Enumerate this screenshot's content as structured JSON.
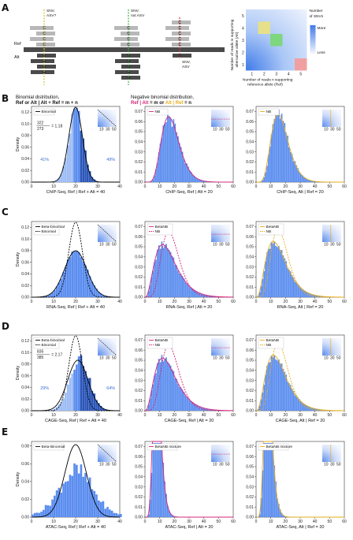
{
  "panel_letters": {
    "A": "A",
    "B": "B",
    "C": "C",
    "D": "D",
    "E": "E"
  },
  "schematic": {
    "ref_label": "Ref",
    "alt_label": "Alt",
    "snv_asv_q": [
      "SNV,",
      "ASV?"
    ],
    "snv_not_asv": [
      "SNV,",
      "not ASV"
    ],
    "snv_asv": [
      "SNV,",
      "ASV"
    ],
    "colors": {
      "ref": "#c9c9c9",
      "alt": "#4a4a4a",
      "yellow": "#c9c92a",
      "green": "#3cb33c",
      "red": "#d23c3c"
    }
  },
  "heatmap": {
    "ylabel_line1": "Number of reads m supporting",
    "ylabel_line2": "alternative allele (Alt)",
    "xlabel_line1": "Number of reads n supporting",
    "xlabel_line2": "reference allele (Ref)",
    "x_ticks": [
      "1",
      "2",
      "3",
      "4",
      "5"
    ],
    "y_ticks": [
      "1",
      "2",
      "3",
      "4",
      "5"
    ],
    "legend_title_1": "Number",
    "legend_title_2": "of SNVs",
    "legend_more": "More",
    "legend_less": "Less",
    "highlights": [
      {
        "n": 2,
        "m": 4,
        "color": "#e6e08a"
      },
      {
        "n": 3,
        "m": 3,
        "color": "#7ed67e"
      },
      {
        "n": 5,
        "m": 1,
        "color": "#f0a0a0"
      }
    ]
  },
  "col_headers": {
    "b1_line1": "Binomial distribution,",
    "b1_line2_a": "Ref or Alt",
    "b1_line2_b": " | ",
    "b1_line2_c": "Alt + Ref = m + n",
    "b2_line1": "Negative binomial distribution,",
    "b2_ref": "Ref",
    "b2_sep": " | ",
    "b2_alt": "Alt",
    "b2_m": " = m or ",
    "b2_alt2": "Alt",
    "b2_sep2": " | ",
    "b2_ref2": "Ref",
    "b2_n": " = n"
  },
  "density_label": "Density",
  "rows": [
    {
      "letter": "B",
      "panels": [
        {
          "xlabel": "ChIP-Seq, Ref | Ref + Alt = 40",
          "yticks": [
            "0.00",
            "0.02",
            "0.04",
            "0.06",
            "0.08",
            "0.10",
            "0.12"
          ],
          "ymax": 0.13,
          "xticks": [
            "0",
            "10",
            "20",
            "30",
            "40"
          ],
          "xmax": 40,
          "legend": [
            "Binomial"
          ],
          "pct_left": "41%",
          "pct_right": "49%",
          "ratio_num": "322",
          "ratio_den": "273",
          "ratio_val": "= 1.18",
          "kind": "binom"
        },
        {
          "xlabel": "ChIP-Seq, Ref | Alt = 20",
          "yticks": [
            "0.00",
            "0.01",
            "0.02",
            "0.03",
            "0.04",
            "0.05",
            "0.06",
            "0.07"
          ],
          "ymax": 0.075,
          "xticks": [
            "0",
            "10",
            "20",
            "30",
            "40",
            "50",
            "60"
          ],
          "xmax": 60,
          "legend": [
            "NB"
          ],
          "kind": "nb_ref"
        },
        {
          "xlabel": "ChIP-Seq, Alt | Ref = 20",
          "yticks": [
            "0.00",
            "0.01",
            "0.02",
            "0.03",
            "0.04",
            "0.05",
            "0.06",
            "0.07"
          ],
          "ymax": 0.075,
          "xticks": [
            "0",
            "10",
            "20",
            "30",
            "40",
            "50",
            "60"
          ],
          "xmax": 60,
          "legend": [
            "NB"
          ],
          "kind": "nb_alt"
        }
      ]
    },
    {
      "letter": "C",
      "panels": [
        {
          "xlabel": "RNA-Seq, Ref | Ref + Alt = 40",
          "yticks": [
            "0.00",
            "0.02",
            "0.04",
            "0.06",
            "0.08",
            "0.10",
            "0.12"
          ],
          "ymax": 0.13,
          "xticks": [
            "0",
            "10",
            "20",
            "30",
            "40"
          ],
          "xmax": 40,
          "legend": [
            "Beta-binomial",
            "Binomial"
          ],
          "kind": "bb"
        },
        {
          "xlabel": "RNA-Seq, Ref | Alt = 20",
          "yticks": [
            "0.00",
            "0.01",
            "0.02",
            "0.03",
            "0.04",
            "0.05",
            "0.06",
            "0.07"
          ],
          "ymax": 0.075,
          "xticks": [
            "0",
            "10",
            "20",
            "30",
            "40",
            "50",
            "60"
          ],
          "xmax": 60,
          "legend": [
            "BetaNB",
            "NB"
          ],
          "kind": "bnb_ref"
        },
        {
          "xlabel": "RNA-Seq, Alt | Ref = 20",
          "yticks": [
            "0.00",
            "0.01",
            "0.02",
            "0.03",
            "0.04",
            "0.05",
            "0.06",
            "0.07"
          ],
          "ymax": 0.075,
          "xticks": [
            "0",
            "10",
            "20",
            "30",
            "40",
            "50",
            "60"
          ],
          "xmax": 60,
          "legend": [
            "BetaNB",
            "NB"
          ],
          "kind": "bnb_alt"
        }
      ]
    },
    {
      "letter": "D",
      "panels": [
        {
          "xlabel": "CAGE-Seq, Ref | Ref + Alt = 40",
          "yticks": [
            "0.00",
            "0.02",
            "0.04",
            "0.06",
            "0.08",
            "0.10",
            "0.12"
          ],
          "ymax": 0.13,
          "xticks": [
            "0",
            "10",
            "20",
            "30",
            "40"
          ],
          "xmax": 40,
          "legend": [
            "Beta-binomial",
            "Binomial"
          ],
          "pct_left": "29%",
          "pct_right": "64%",
          "ratio_num": "835",
          "ratio_den": "385",
          "ratio_val": "= 2.17",
          "kind": "bb_skew"
        },
        {
          "xlabel": "CAGE-Seq, Ref | Alt = 20",
          "yticks": [
            "0.00",
            "0.01",
            "0.02",
            "0.03",
            "0.04",
            "0.05",
            "0.06",
            "0.07"
          ],
          "ymax": 0.075,
          "xticks": [
            "0",
            "10",
            "20",
            "30",
            "40",
            "50",
            "60"
          ],
          "xmax": 60,
          "legend": [
            "BetaNB",
            "NB"
          ],
          "kind": "bnb_ref"
        },
        {
          "xlabel": "CAGE-Seq, Alt | Ref = 20",
          "yticks": [
            "0.00",
            "0.01",
            "0.02",
            "0.03",
            "0.04",
            "0.05",
            "0.06",
            "0.07"
          ],
          "ymax": 0.075,
          "xticks": [
            "0",
            "10",
            "20",
            "30",
            "40",
            "50",
            "60"
          ],
          "xmax": 60,
          "legend": [
            "BetaNB",
            "NB"
          ],
          "kind": "bnb_alt"
        }
      ]
    },
    {
      "letter": "E",
      "panels": [
        {
          "xlabel": "ATAC-Seq, Ref | Ref + Alt = 40",
          "yticks": [
            "0.00",
            "0.02",
            "0.04",
            "0.06",
            "0.08"
          ],
          "ymax": 0.085,
          "xticks": [
            "0",
            "10",
            "20",
            "30",
            "40"
          ],
          "xmax": 40,
          "legend": [
            "Beta-Binomial"
          ],
          "kind": "atac_bb"
        },
        {
          "xlabel": "ATAC-Seq, Ref | Alt = 20",
          "yticks": [
            "0.00",
            "0.01",
            "0.02",
            "0.03",
            "0.04",
            "0.05",
            "0.06",
            "0.07"
          ],
          "ymax": 0.075,
          "xticks": [
            "0",
            "10",
            "20",
            "30",
            "40",
            "50",
            "60"
          ],
          "xmax": 60,
          "legend": [
            "BetaNB mixture"
          ],
          "kind": "atac_ref"
        },
        {
          "xlabel": "ATAC-Seq, Alt | Ref = 20",
          "yticks": [
            "0.00",
            "0.01",
            "0.02",
            "0.03",
            "0.04",
            "0.05",
            "0.06",
            "0.07"
          ],
          "ymax": 0.075,
          "xticks": [
            "0",
            "10",
            "20",
            "30",
            "40",
            "50",
            "60"
          ],
          "xmax": 60,
          "legend": [
            "BetaNB mixture"
          ],
          "kind": "atac_alt"
        }
      ]
    }
  ],
  "inset_ticks": [
    "10",
    "30",
    "50"
  ],
  "colors": {
    "bar": "#5b8def",
    "bar_light": "#9dbdf5",
    "bar_dark": "#2c56b8",
    "magenta": "#d6247a",
    "yellow": "#e6ad1a",
    "black": "#000000",
    "inset_bg": "#dfe9fb"
  }
}
